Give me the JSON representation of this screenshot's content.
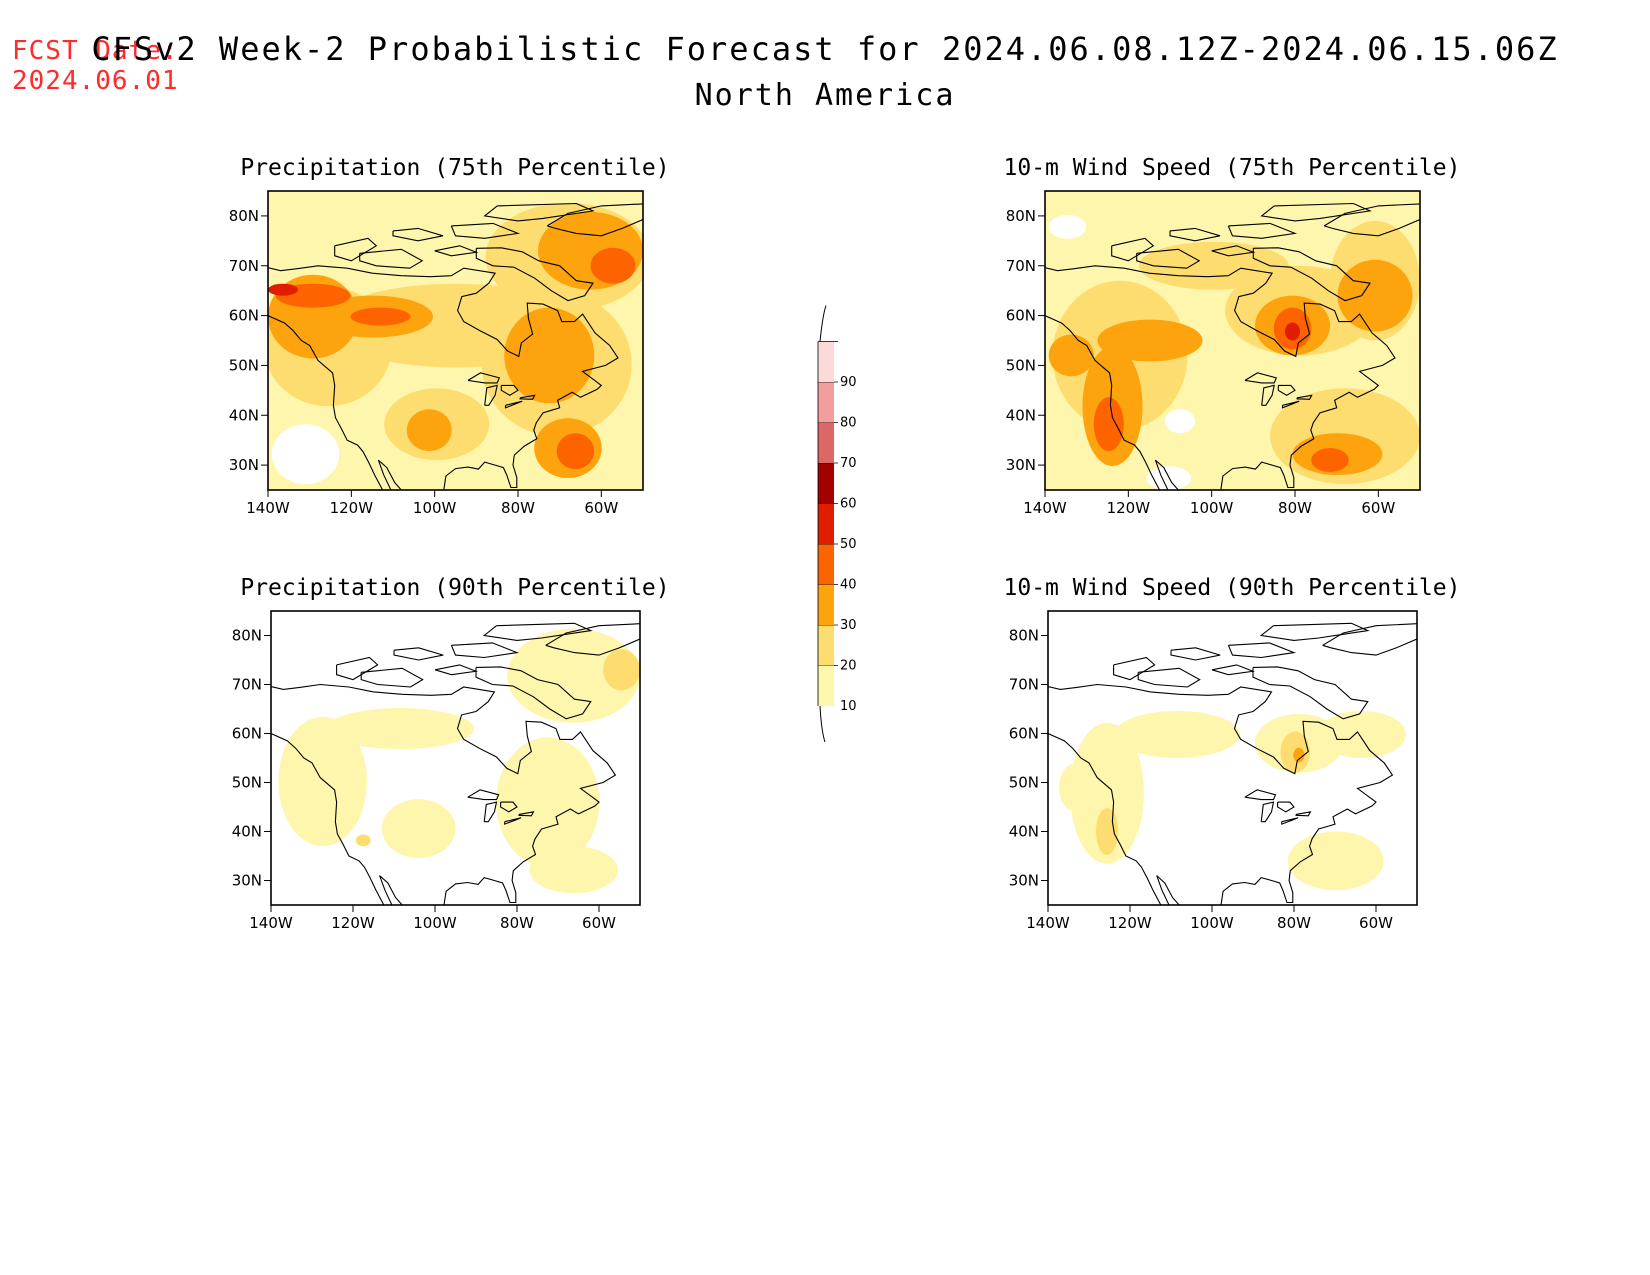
{
  "header": {
    "fcst_label": "FCST Date:",
    "fcst_date": "2024.06.01",
    "title": "CFSv2 Week-2 Probabilistic Forecast for 2024.06.08.12Z-2024.06.15.06Z",
    "subtitle": "North America"
  },
  "colors": {
    "c10": "#fff6ad",
    "c20": "#fddd70",
    "c30": "#fda30d",
    "c40": "#fd6400",
    "c50": "#e11d00",
    "c60": "#a50000",
    "c70": "#dd6767",
    "c80": "#f29ea0",
    "c90": "#fddada",
    "title_red": "#ff2a2a"
  },
  "panels": [
    {
      "id": "precip75",
      "title": "Precipitation (75th Percentile)"
    },
    {
      "id": "wind75",
      "title": "10-m Wind Speed (75th Percentile)"
    },
    {
      "id": "precip90",
      "title": "Precipitation (90th Percentile)"
    },
    {
      "id": "wind90",
      "title": "10-m Wind Speed (90th Percentile)"
    }
  ],
  "map_axes": {
    "lat_labels": [
      "80N",
      "70N",
      "60N",
      "50N",
      "40N",
      "30N"
    ],
    "lon_labels": [
      "140W",
      "120W",
      "100W",
      "80W",
      "60W"
    ]
  },
  "colorbar": {
    "labels": [
      "10",
      "20",
      "30",
      "40",
      "50",
      "60",
      "70",
      "80",
      "90"
    ]
  }
}
